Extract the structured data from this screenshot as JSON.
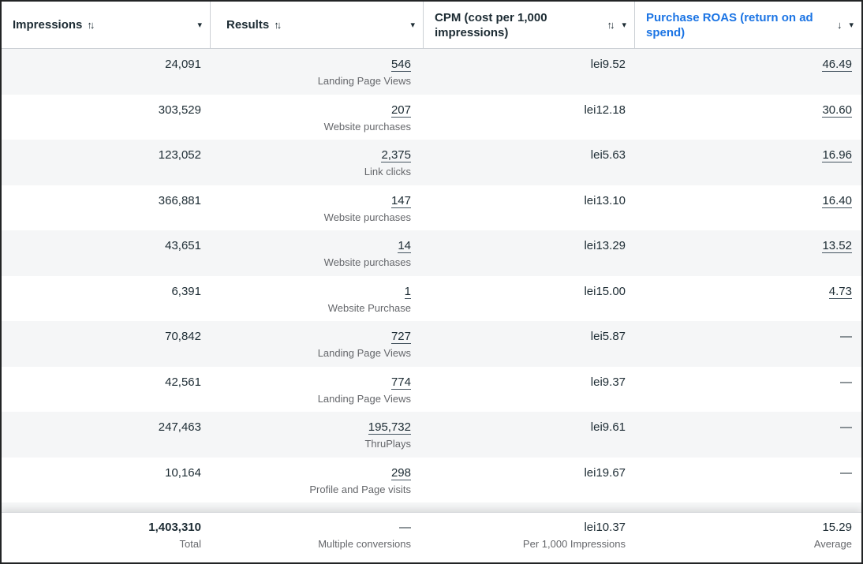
{
  "accent_color": "#1b74e4",
  "table": {
    "columns": [
      {
        "id": "impressions",
        "label": "Impressions",
        "sort_icon": "↑↓",
        "caret": "▾"
      },
      {
        "id": "results",
        "label": "Results",
        "sort_icon": "↑↓",
        "caret": "▾"
      },
      {
        "id": "cpm",
        "label": "CPM (cost per 1,000 impressions)",
        "sort_icon": "↑↓",
        "caret": "▾"
      },
      {
        "id": "roas",
        "label": "Purchase ROAS (return on ad spend)",
        "sort_icon": "↓",
        "caret": "▾",
        "sorted": "desc"
      }
    ],
    "rows": [
      {
        "impressions": "24,091",
        "results": "546",
        "result_type": "Landing Page Views",
        "cpm": "lei9.52",
        "roas": "46.49"
      },
      {
        "impressions": "303,529",
        "results": "207",
        "result_type": "Website purchases",
        "cpm": "lei12.18",
        "roas": "30.60"
      },
      {
        "impressions": "123,052",
        "results": "2,375",
        "result_type": "Link clicks",
        "cpm": "lei5.63",
        "roas": "16.96"
      },
      {
        "impressions": "366,881",
        "results": "147",
        "result_type": "Website purchases",
        "cpm": "lei13.10",
        "roas": "16.40"
      },
      {
        "impressions": "43,651",
        "results": "14",
        "result_type": "Website purchases",
        "cpm": "lei13.29",
        "roas": "13.52"
      },
      {
        "impressions": "6,391",
        "results": "1",
        "result_type": "Website Purchase",
        "cpm": "lei15.00",
        "roas": "4.73"
      },
      {
        "impressions": "70,842",
        "results": "727",
        "result_type": "Landing Page Views",
        "cpm": "lei5.87",
        "roas": "—"
      },
      {
        "impressions": "42,561",
        "results": "774",
        "result_type": "Landing Page Views",
        "cpm": "lei9.37",
        "roas": "—"
      },
      {
        "impressions": "247,463",
        "results": "195,732",
        "result_type": "ThruPlays",
        "cpm": "lei9.61",
        "roas": "—"
      },
      {
        "impressions": "10,164",
        "results": "298",
        "result_type": "Profile and Page visits",
        "cpm": "lei19.67",
        "roas": "—"
      }
    ],
    "footer": {
      "impressions": "1,403,310",
      "impressions_label": "Total",
      "results": "—",
      "results_label": "Multiple conversions",
      "cpm": "lei10.37",
      "cpm_label": "Per 1,000 Impressions",
      "roas": "15.29",
      "roas_label": "Average"
    }
  }
}
